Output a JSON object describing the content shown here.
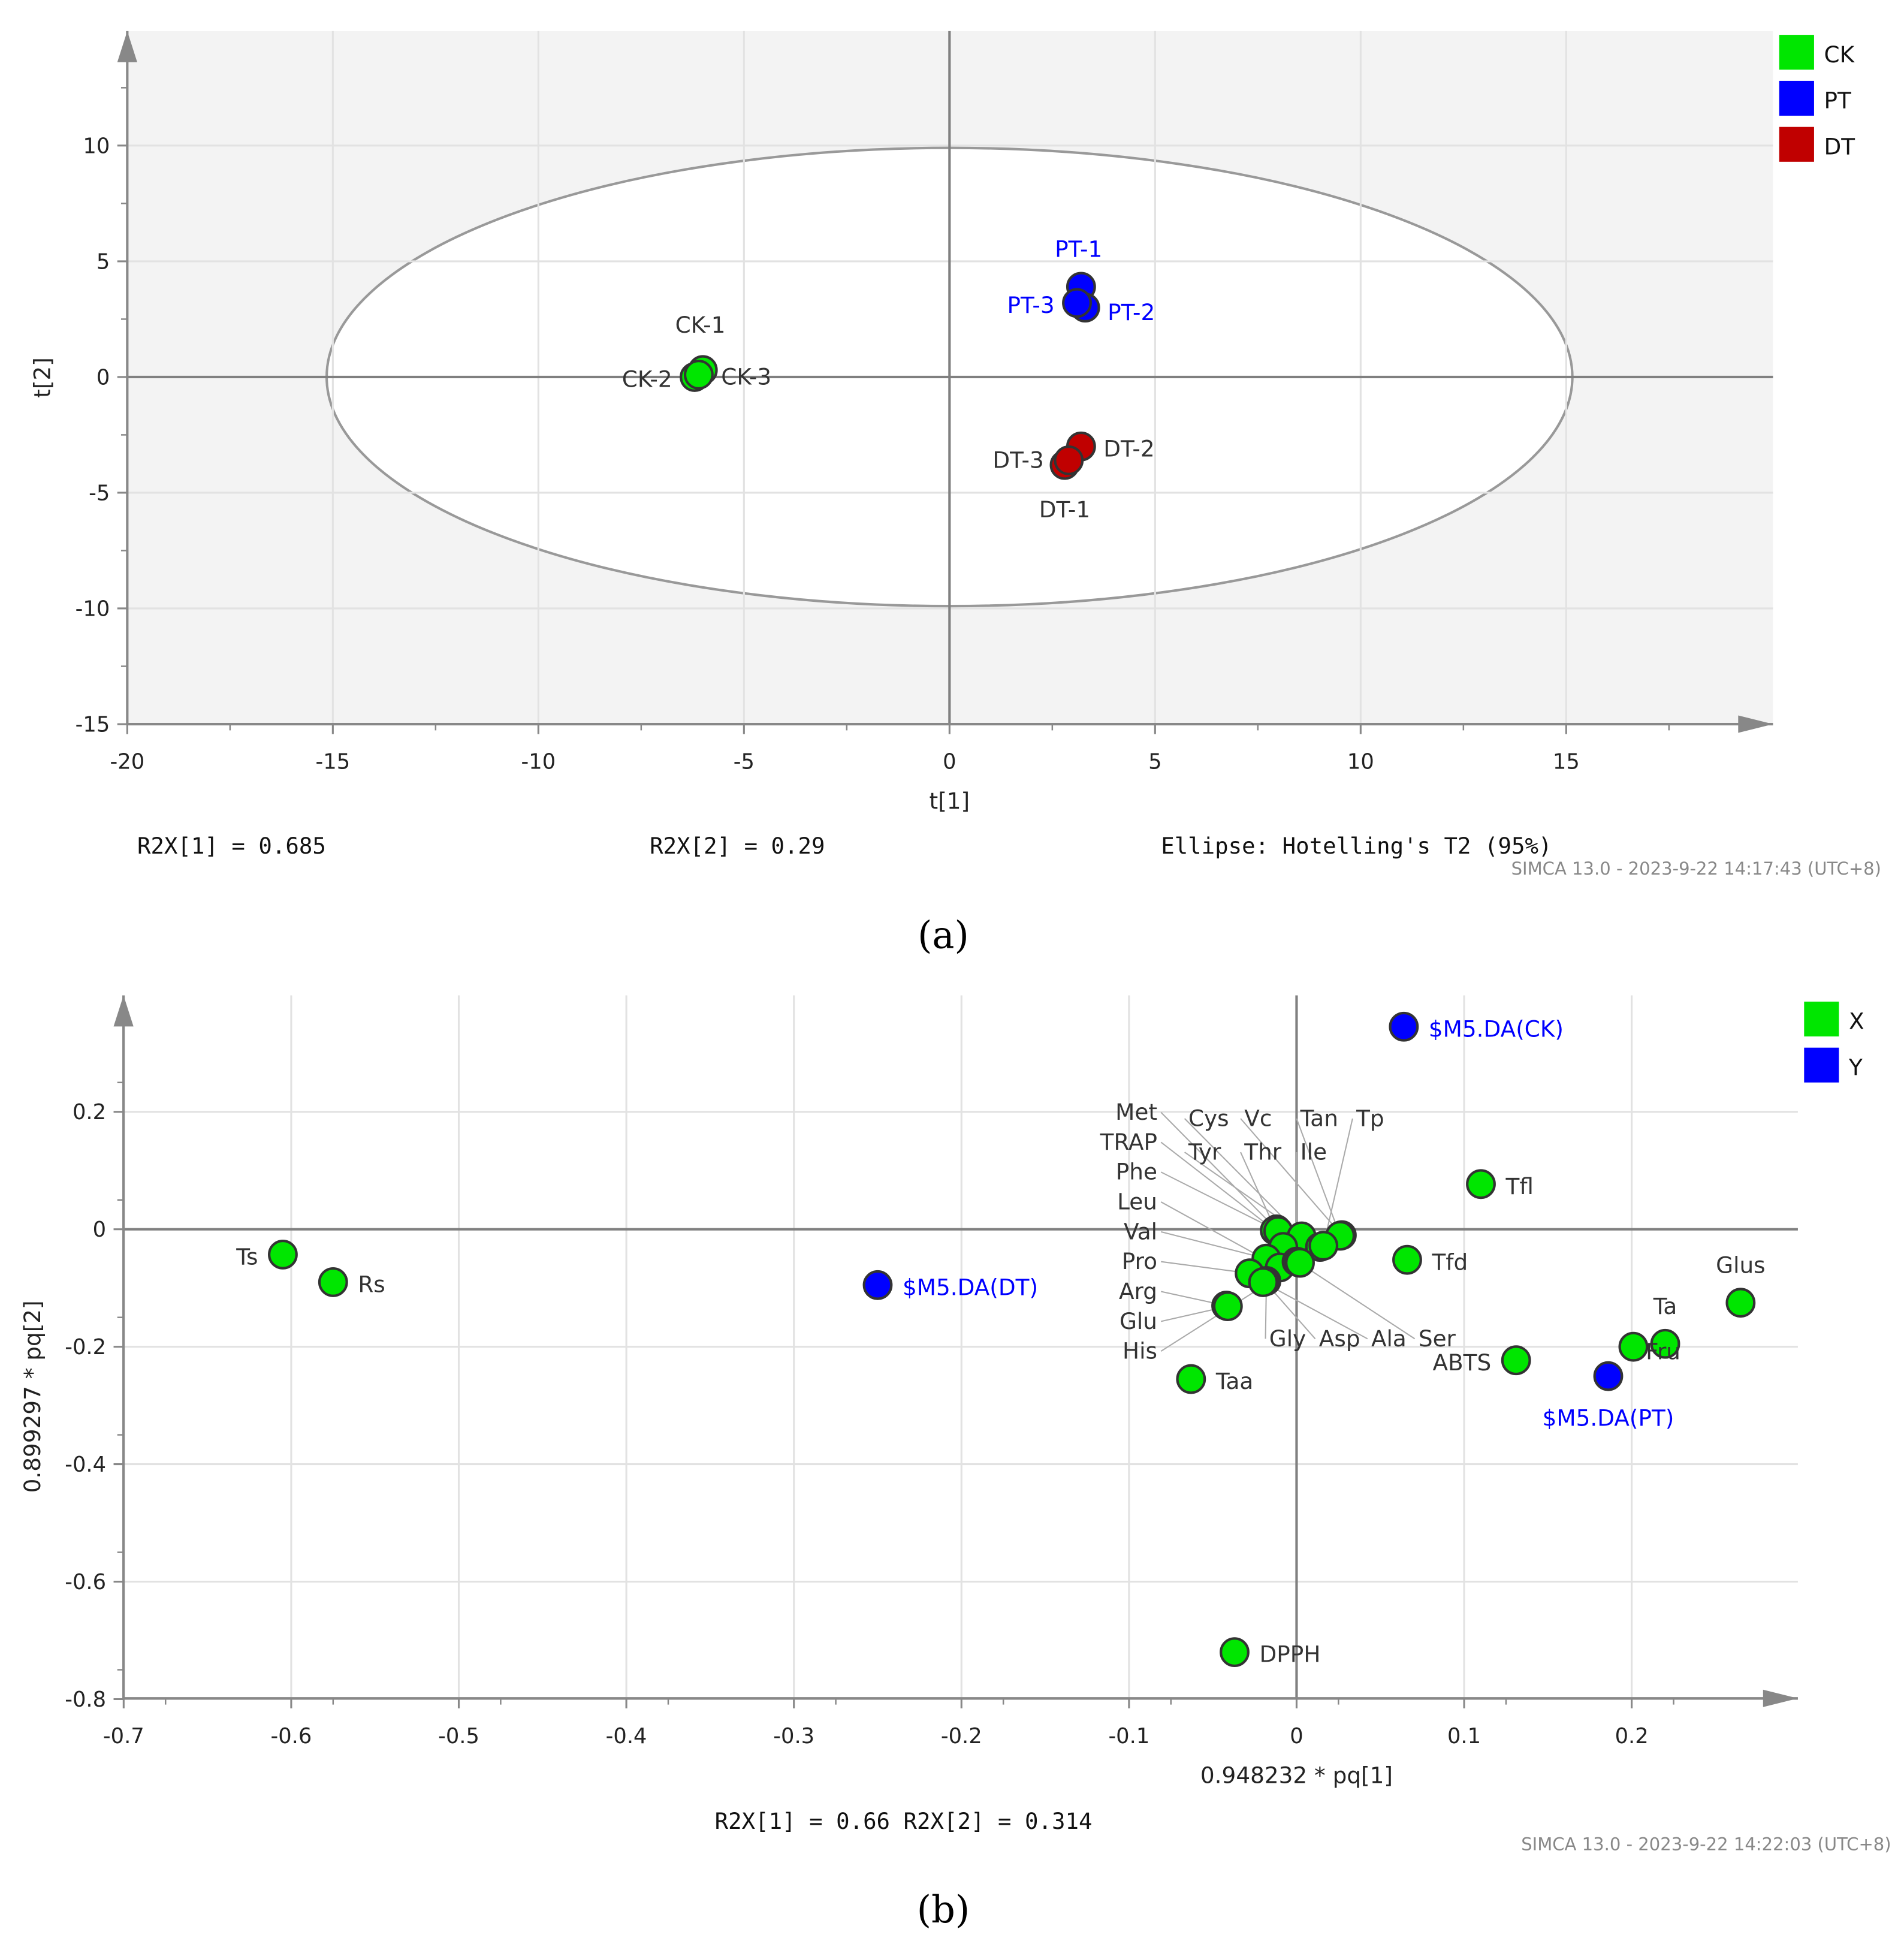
{
  "chart_data": [
    {
      "type": "scatter",
      "panel": "(a)",
      "xlabel": "t[1]",
      "ylabel": "t[2]",
      "xlim": [
        -20,
        20
      ],
      "ylim": [
        -15,
        15
      ],
      "xticks": [
        "-20",
        "-15",
        "-10",
        "-5",
        "0",
        "5",
        "10",
        "15"
      ],
      "xtick_values": [
        -20,
        -15,
        -10,
        -5,
        0,
        5,
        10,
        15
      ],
      "yticks": [
        "10",
        "5",
        "0",
        "-5",
        "-10",
        "-15"
      ],
      "ytick_values": [
        10,
        5,
        0,
        -5,
        -10,
        -15
      ],
      "ellipse": {
        "label": "Ellipse: Hotelling's T2 (95%)",
        "rx": 15.15,
        "ry": 9.9
      },
      "legend": [
        {
          "name": "CK",
          "color": "#00e600"
        },
        {
          "name": "PT",
          "color": "#0000ff"
        },
        {
          "name": "DT",
          "color": "#c00000"
        }
      ],
      "points": [
        {
          "label": "CK-1",
          "x": -6.0,
          "y": 0.3,
          "group": "CK"
        },
        {
          "label": "CK-2",
          "x": -6.2,
          "y": 0.0,
          "group": "CK"
        },
        {
          "label": "CK-3",
          "x": -6.1,
          "y": 0.1,
          "group": "CK"
        },
        {
          "label": "PT-1",
          "x": 3.2,
          "y": 3.9,
          "group": "PT"
        },
        {
          "label": "PT-2",
          "x": 3.3,
          "y": 3.0,
          "group": "PT"
        },
        {
          "label": "PT-3",
          "x": 3.1,
          "y": 3.2,
          "group": "PT"
        },
        {
          "label": "DT-1",
          "x": 2.8,
          "y": -3.8,
          "group": "DT"
        },
        {
          "label": "DT-2",
          "x": 3.2,
          "y": -3.0,
          "group": "DT"
        },
        {
          "label": "DT-3",
          "x": 2.9,
          "y": -3.6,
          "group": "DT"
        }
      ],
      "footer": {
        "r2x1": "R2X[1] = 0.685",
        "r2x2": "R2X[2] = 0.29",
        "stamp": "SIMCA 13.0 - 2023-9-22 14:17:43 (UTC+8)"
      }
    },
    {
      "type": "scatter",
      "panel": "(b)",
      "xlabel": "0.948232 * pq[1]",
      "ylabel": "0.899297 * pq[2]",
      "xlim": [
        -0.7,
        0.3
      ],
      "ylim": [
        -0.8,
        0.4
      ],
      "xticks": [
        "-0.7",
        "-0.6",
        "-0.5",
        "-0.4",
        "-0.3",
        "-0.2",
        "-0.1",
        "0",
        "0.1",
        "0.2"
      ],
      "xtick_values": [
        -0.7,
        -0.6,
        -0.5,
        -0.4,
        -0.3,
        -0.2,
        -0.1,
        0,
        0.1,
        0.2
      ],
      "yticks": [
        "0.2",
        "0",
        "-0.2",
        "-0.4",
        "-0.6",
        "-0.8"
      ],
      "ytick_values": [
        0.2,
        0,
        -0.2,
        -0.4,
        -0.6,
        -0.8
      ],
      "legend": [
        {
          "name": "X",
          "color": "#00e600"
        },
        {
          "name": "Y",
          "color": "#0000ff"
        }
      ],
      "points": [
        {
          "label": "Ts",
          "x": -0.605,
          "y": -0.043,
          "group": "X"
        },
        {
          "label": "Rs",
          "x": -0.575,
          "y": -0.09,
          "group": "X"
        },
        {
          "label": "$M5.DA(DT)",
          "x": -0.25,
          "y": -0.095,
          "group": "Y"
        },
        {
          "label": "$M5.DA(CK)",
          "x": 0.064,
          "y": 0.345,
          "group": "Y"
        },
        {
          "label": "$M5.DA(PT)",
          "x": 0.186,
          "y": -0.25,
          "group": "Y"
        },
        {
          "label": "Tfl",
          "x": 0.11,
          "y": 0.077,
          "group": "X"
        },
        {
          "label": "Tfd",
          "x": 0.066,
          "y": -0.052,
          "group": "X"
        },
        {
          "label": "Glus",
          "x": 0.265,
          "y": -0.125,
          "group": "X"
        },
        {
          "label": "Ta",
          "x": 0.22,
          "y": -0.195,
          "group": "X"
        },
        {
          "label": "Fru",
          "x": 0.201,
          "y": -0.2,
          "group": "X"
        },
        {
          "label": "ABTS",
          "x": 0.131,
          "y": -0.223,
          "group": "X"
        },
        {
          "label": "Taa",
          "x": -0.063,
          "y": -0.255,
          "group": "X"
        },
        {
          "label": "DPPH",
          "x": -0.037,
          "y": -0.72,
          "group": "X"
        },
        {
          "label": "Arg",
          "x": -0.042,
          "y": -0.13,
          "group": "X"
        },
        {
          "label": "Glu",
          "x": -0.041,
          "y": -0.131,
          "group": "X"
        },
        {
          "label": "Met",
          "x": -0.012,
          "y": 0.0,
          "group": "X"
        },
        {
          "label": "TRAP",
          "x": -0.013,
          "y": -0.002,
          "group": "X"
        },
        {
          "label": "Phe",
          "x": -0.011,
          "y": -0.003,
          "group": "X"
        },
        {
          "label": "Cys",
          "x": 0.003,
          "y": -0.012,
          "group": "X"
        },
        {
          "label": "Vc",
          "x": 0.027,
          "y": -0.01,
          "group": "X"
        },
        {
          "label": "Tan",
          "x": 0.026,
          "y": -0.011,
          "group": "X"
        },
        {
          "label": "Tyr",
          "x": 0.014,
          "y": -0.03,
          "group": "X"
        },
        {
          "label": "Tp",
          "x": 0.016,
          "y": -0.028,
          "group": "X"
        },
        {
          "label": "Thr",
          "x": -0.008,
          "y": -0.03,
          "group": "X"
        },
        {
          "label": "Val",
          "x": -0.018,
          "y": -0.05,
          "group": "X"
        },
        {
          "label": "Pro",
          "x": -0.028,
          "y": -0.075,
          "group": "X"
        },
        {
          "label": "Leu",
          "x": -0.01,
          "y": -0.065,
          "group": "X"
        },
        {
          "label": "Ile",
          "x": 0.0,
          "y": -0.055,
          "group": "X"
        },
        {
          "label": "Gly",
          "x": -0.018,
          "y": -0.088,
          "group": "X"
        },
        {
          "label": "Asp",
          "x": -0.019,
          "y": -0.089,
          "group": "X"
        },
        {
          "label": "Ala",
          "x": -0.02,
          "y": -0.09,
          "group": "X"
        },
        {
          "label": "Ser",
          "x": 0.001,
          "y": -0.056,
          "group": "X"
        },
        {
          "label": "His",
          "x": 0.002,
          "y": -0.057,
          "group": "X"
        }
      ],
      "footer": {
        "r2x": "R2X[1] = 0.66  R2X[2] = 0.314",
        "stamp": "SIMCA 13.0 - 2023-9-22 14:22:03 (UTC+8)"
      }
    }
  ]
}
